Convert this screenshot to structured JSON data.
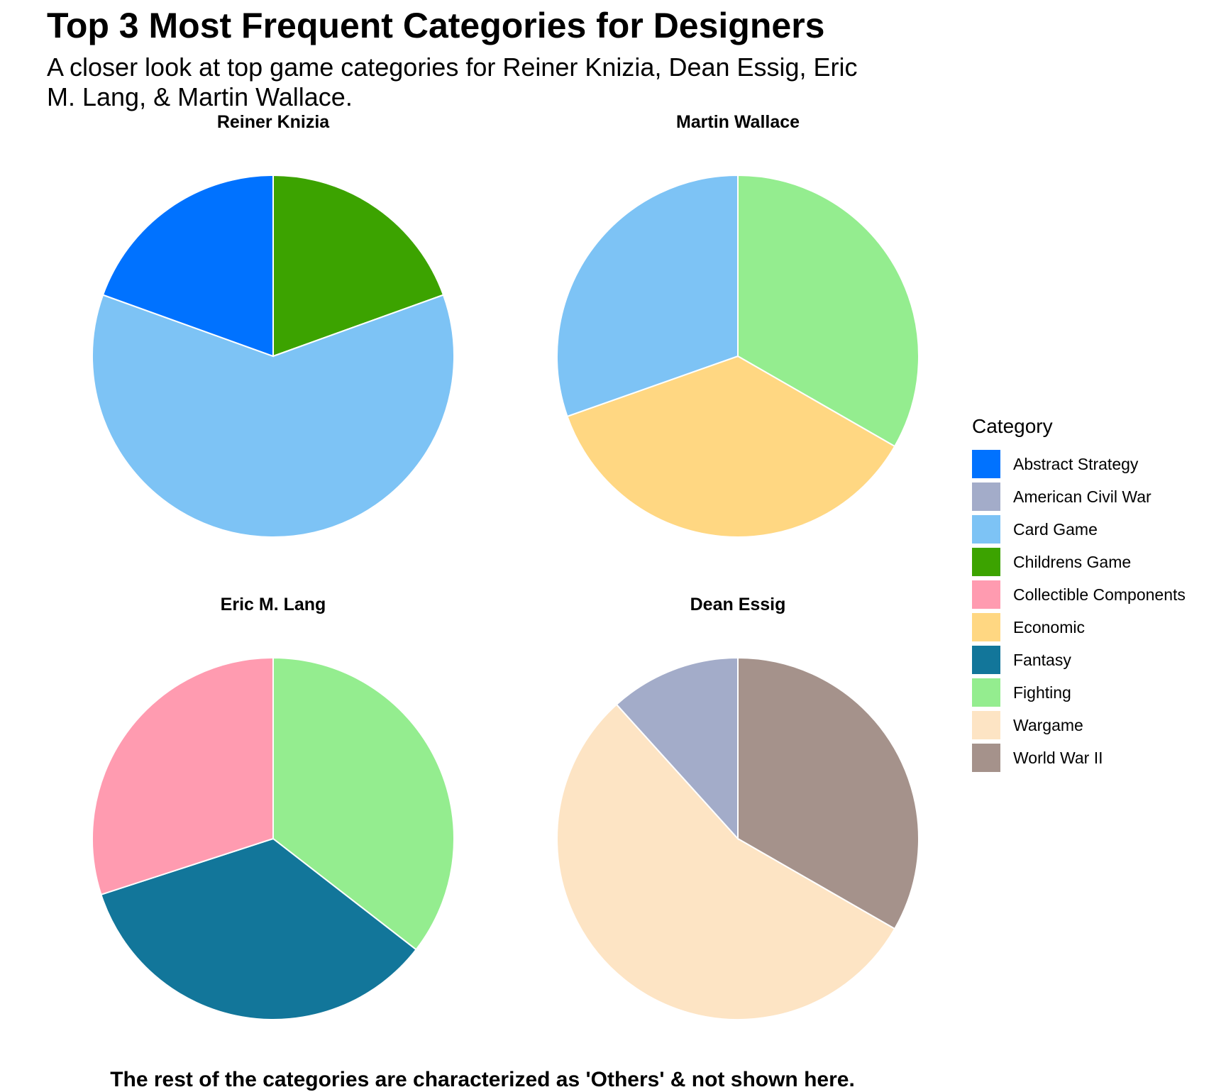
{
  "title": "Top 3 Most Frequent Categories for Designers",
  "subtitle": "A closer look at top game categories for Reiner Knizia, Dean Essig, Eric M. Lang, & Martin Wallace.",
  "caption": "The rest of the categories are characterized as 'Others' & not shown here.",
  "legend": {
    "title": "Category",
    "items": [
      {
        "label": "Abstract Strategy",
        "color": "#0072ff"
      },
      {
        "label": "American Civil War",
        "color": "#a3acc9"
      },
      {
        "label": "Card Game",
        "color": "#7dc3f5"
      },
      {
        "label": "Childrens Game",
        "color": "#3ca300"
      },
      {
        "label": "Collectible Components",
        "color": "#ff9bb0"
      },
      {
        "label": "Economic",
        "color": "#ffd782"
      },
      {
        "label": "Fantasy",
        "color": "#12769a"
      },
      {
        "label": "Fighting",
        "color": "#94ed8f"
      },
      {
        "label": "Wargame",
        "color": "#fde4c4"
      },
      {
        "label": "World War II",
        "color": "#a5928b"
      }
    ]
  },
  "chart_data": [
    {
      "type": "pie",
      "title": "Reiner Knizia",
      "slices": [
        {
          "category": "Childrens Game",
          "value": 0.195
        },
        {
          "category": "Card Game",
          "value": 0.61
        },
        {
          "category": "Abstract Strategy",
          "value": 0.195
        }
      ]
    },
    {
      "type": "pie",
      "title": "Martin Wallace",
      "slices": [
        {
          "category": "Fighting",
          "value": 0.333
        },
        {
          "category": "Economic",
          "value": 0.363
        },
        {
          "category": "Card Game",
          "value": 0.304
        }
      ]
    },
    {
      "type": "pie",
      "title": "Eric M. Lang",
      "slices": [
        {
          "category": "Fighting",
          "value": 0.355
        },
        {
          "category": "Fantasy",
          "value": 0.345
        },
        {
          "category": "Collectible Components",
          "value": 0.3
        }
      ]
    },
    {
      "type": "pie",
      "title": "Dean Essig",
      "slices": [
        {
          "category": "World War II",
          "value": 0.333
        },
        {
          "category": "Wargame",
          "value": 0.55
        },
        {
          "category": "American Civil War",
          "value": 0.117
        }
      ]
    }
  ]
}
